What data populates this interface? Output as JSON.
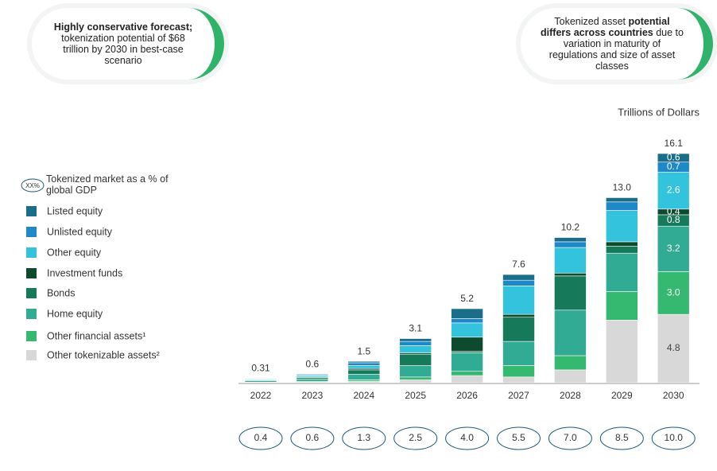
{
  "callouts": [
    [
      {
        "text": "Highly conservative forecast;",
        "bold": true
      },
      {
        "text": " tokenization potential of $68 trillion by 2030 in best-case scenario",
        "bold": false
      }
    ],
    [
      {
        "text": "Tokenized asset ",
        "bold": false
      },
      {
        "text": "potential differs across countries",
        "bold": true
      },
      {
        "text": " due to variation in maturity of regulations and size of asset classes",
        "bold": false
      }
    ]
  ],
  "chart_data": {
    "type": "stacked_bar",
    "unit_label": "Trillions of Dollars",
    "gdp_legend": {
      "badge": "XX%",
      "text": "Tokenized market as a % of global GDP"
    },
    "categories": [
      "2022",
      "2023",
      "2024",
      "2025",
      "2026",
      "2027",
      "2028",
      "2029",
      "2030"
    ],
    "ylim": [
      0,
      16.1
    ],
    "series": [
      {
        "name": "Listed equity",
        "color": "#1a6e8a",
        "values": [
          0.02,
          0.05,
          0.1,
          0.2,
          0.7,
          0.4,
          0.3,
          0.3,
          0.6
        ],
        "value_labels": [
          null,
          null,
          null,
          null,
          null,
          null,
          null,
          null,
          "0.6"
        ]
      },
      {
        "name": "Unlisted equity",
        "color": "#1e88c8",
        "values": [
          0.03,
          0.05,
          0.2,
          0.3,
          0.3,
          0.4,
          0.4,
          0.6,
          0.7
        ],
        "value_labels": [
          null,
          null,
          null,
          null,
          null,
          null,
          null,
          null,
          "0.7"
        ]
      },
      {
        "name": "Other equity",
        "color": "#33c3dc",
        "values": [
          0.05,
          0.1,
          0.2,
          0.5,
          1.0,
          2.0,
          1.8,
          2.2,
          2.6
        ],
        "value_labels": [
          null,
          null,
          null,
          null,
          null,
          null,
          null,
          null,
          "2.6"
        ]
      },
      {
        "name": "Investment funds",
        "color": "#0d4a2e",
        "values": [
          0.02,
          0.05,
          0.1,
          0.1,
          1.0,
          0.2,
          0.2,
          0.3,
          0.4
        ],
        "value_labels": [
          null,
          null,
          null,
          null,
          null,
          null,
          null,
          null,
          "0.4"
        ]
      },
      {
        "name": "Bonds",
        "color": "#167a5a",
        "values": [
          0.05,
          0.1,
          0.3,
          0.8,
          0.1,
          1.7,
          2.4,
          0.5,
          0.8
        ],
        "value_labels": [
          null,
          null,
          null,
          null,
          null,
          null,
          null,
          null,
          "0.8"
        ]
      },
      {
        "name": "Home equity",
        "color": "#32ab94",
        "values": [
          0.1,
          0.15,
          0.4,
          0.8,
          1.3,
          1.7,
          3.2,
          2.7,
          3.2
        ],
        "value_labels": [
          null,
          null,
          null,
          null,
          null,
          null,
          null,
          null,
          "3.2"
        ]
      },
      {
        "name": "Other financial assets¹",
        "color": "#35b870",
        "values": [
          0.02,
          0.05,
          0.1,
          0.2,
          0.3,
          0.8,
          1.0,
          2.0,
          3.0
        ],
        "value_labels": [
          null,
          null,
          null,
          null,
          null,
          null,
          null,
          null,
          "3.0"
        ]
      },
      {
        "name": "Other tokenizable assets²",
        "color": "#d8d8d8",
        "values": [
          0.02,
          0.05,
          0.1,
          0.2,
          0.5,
          0.4,
          0.9,
          4.4,
          4.8
        ],
        "value_labels": [
          null,
          null,
          null,
          null,
          null,
          null,
          null,
          null,
          "4.8"
        ]
      }
    ],
    "totals": [
      0.31,
      0.6,
      1.5,
      3.1,
      5.2,
      7.6,
      10.2,
      13.0,
      16.1
    ],
    "total_labels": [
      "0.31",
      "0.6",
      "1.5",
      "3.1",
      "5.2",
      "7.6",
      "10.2",
      "13.0",
      "16.1"
    ],
    "gdp_labels": [
      "0.4",
      "0.6",
      "1.3",
      "2.5",
      "4.0",
      "5.5",
      "7.0",
      "8.5",
      "10.0"
    ]
  }
}
